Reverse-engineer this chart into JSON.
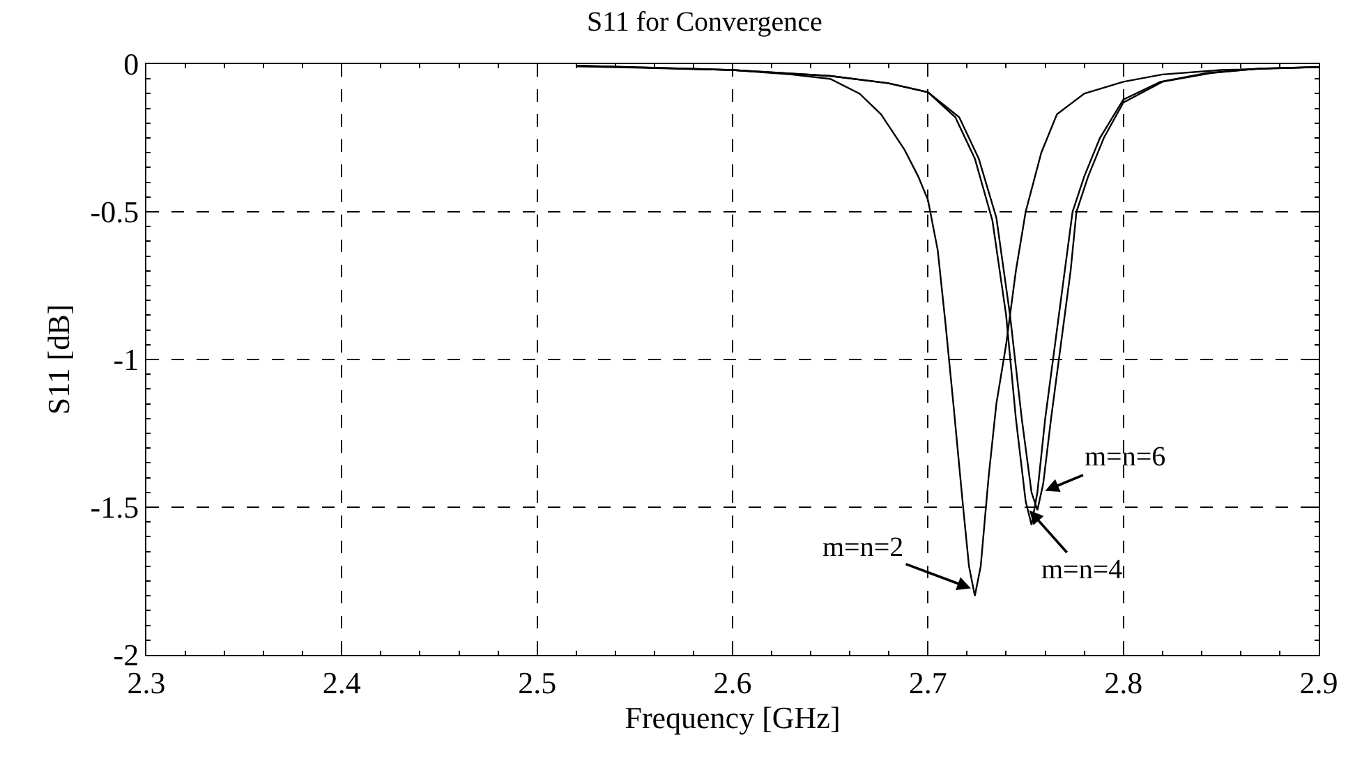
{
  "chart_data": {
    "type": "line",
    "title": "S11 for Convergence",
    "xlabel": "Frequency [GHz]",
    "ylabel": "S11 [dB]",
    "xlim": [
      2.3,
      2.9
    ],
    "xticks": [
      2.3,
      2.4,
      2.5,
      2.6,
      2.7,
      2.8,
      2.9
    ],
    "ylim": [
      -2,
      0
    ],
    "yticks": [
      {
        "value": -2,
        "label": "-2"
      },
      -1.5,
      {
        "value": -1,
        "label": "-1"
      },
      -0.5,
      0
    ],
    "grid": true,
    "marker": "none",
    "line_style": "solid",
    "series": [
      {
        "color": "#000000",
        "x": [
          2.52,
          2.55,
          2.6,
          2.63,
          2.65,
          2.665,
          2.676,
          2.688,
          2.695,
          2.7,
          2.705,
          2.709,
          2.713,
          2.718,
          2.721,
          2.724,
          2.727,
          2.731,
          2.735,
          2.74,
          2.745,
          2.75,
          2.758,
          2.766,
          2.78,
          2.8,
          2.82,
          2.85,
          2.9
        ],
        "values": [
          -0.008,
          -0.012,
          -0.02,
          -0.035,
          -0.05,
          -0.1,
          -0.17,
          -0.29,
          -0.38,
          -0.46,
          -0.63,
          -0.88,
          -1.15,
          -1.5,
          -1.7,
          -1.8,
          -1.7,
          -1.4,
          -1.15,
          -0.95,
          -0.7,
          -0.5,
          -0.3,
          -0.17,
          -0.1,
          -0.06,
          -0.035,
          -0.02,
          -0.01
        ]
      },
      {
        "color": "#000000",
        "x": [
          2.52,
          2.6,
          2.65,
          2.68,
          2.7,
          2.714,
          2.724,
          2.733,
          2.74,
          2.745,
          2.75,
          2.753,
          2.756,
          2.76,
          2.765,
          2.77,
          2.774,
          2.78,
          2.788,
          2.8,
          2.819,
          2.843,
          2.87,
          2.9
        ],
        "values": [
          -0.005,
          -0.02,
          -0.04,
          -0.065,
          -0.095,
          -0.18,
          -0.32,
          -0.53,
          -0.85,
          -1.2,
          -1.48,
          -1.56,
          -1.45,
          -1.2,
          -0.95,
          -0.7,
          -0.5,
          -0.38,
          -0.25,
          -0.12,
          -0.06,
          -0.03,
          -0.015,
          -0.01
        ]
      },
      {
        "color": "#000000",
        "x": [
          2.52,
          2.6,
          2.65,
          2.68,
          2.7,
          2.716,
          2.726,
          2.735,
          2.742,
          2.748,
          2.753,
          2.756,
          2.759,
          2.763,
          2.768,
          2.773,
          2.776,
          2.782,
          2.79,
          2.8,
          2.82,
          2.845,
          2.87,
          2.9
        ],
        "values": [
          -0.005,
          -0.02,
          -0.04,
          -0.065,
          -0.095,
          -0.18,
          -0.32,
          -0.52,
          -0.85,
          -1.2,
          -1.45,
          -1.51,
          -1.42,
          -1.2,
          -0.95,
          -0.7,
          -0.5,
          -0.38,
          -0.25,
          -0.13,
          -0.06,
          -0.03,
          -0.015,
          -0.01
        ]
      }
    ],
    "annotations": [
      {
        "text": "m=n=2",
        "x": 2.724,
        "y": -1.78
      },
      {
        "text": "m=n=4",
        "x": 2.7505,
        "y": -1.5
      },
      {
        "text": "m=n=6",
        "x": 2.758,
        "y": -1.45
      }
    ]
  }
}
